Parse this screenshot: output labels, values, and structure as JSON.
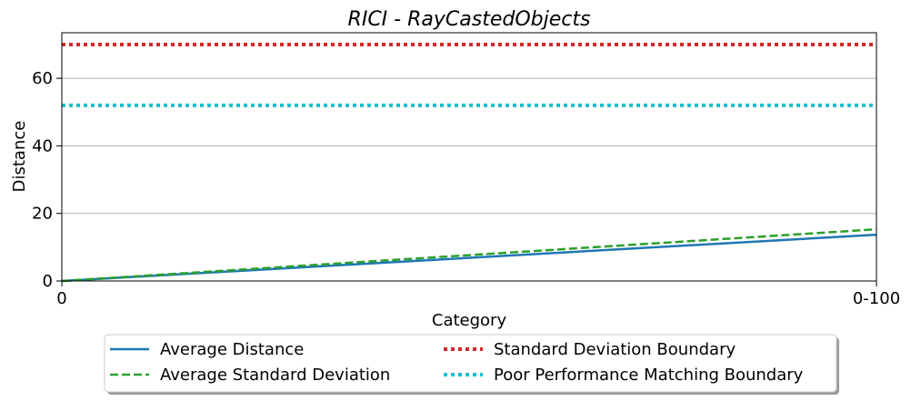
{
  "chart_data": {
    "type": "line",
    "title": "RICI - RayCastedObjects",
    "xlabel": "Category",
    "ylabel": "Distance",
    "categories": [
      "0",
      "0-100"
    ],
    "ylim": [
      0,
      73.5
    ],
    "yticks": [
      0,
      20,
      40,
      60
    ],
    "grid": "y",
    "legend_placement": "bottom-center",
    "series": [
      {
        "name": "Average Distance",
        "values": [
          0,
          13.7
        ],
        "color": "#1f77b4",
        "style": "solid"
      },
      {
        "name": "Average Standard Deviation",
        "values": [
          0,
          15.3
        ],
        "color": "#2ca02c",
        "style": "dashed"
      },
      {
        "name": "Standard Deviation Boundary",
        "values": [
          70,
          70
        ],
        "color": "#d62728",
        "style": "dotted"
      },
      {
        "name": "Poor Performance Matching Boundary",
        "values": [
          52,
          52
        ],
        "color": "#17becf",
        "style": "dotted"
      }
    ]
  }
}
